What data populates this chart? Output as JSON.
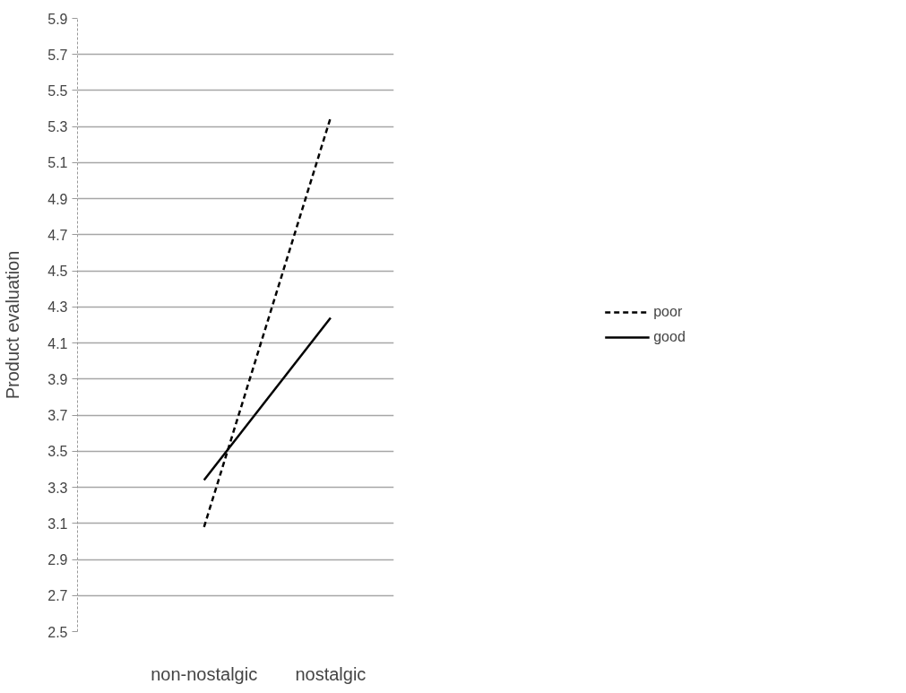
{
  "chart_data": {
    "type": "line",
    "ylabel": "Product evaluation",
    "categories": [
      "non-nostalgic",
      "nostalgic"
    ],
    "series": [
      {
        "name": "poor",
        "color": "#000000",
        "line_style": "dashed",
        "values": [
          3.08,
          5.35
        ]
      },
      {
        "name": "good",
        "color": "#000000",
        "line_style": "solid",
        "values": [
          3.34,
          4.24
        ]
      }
    ],
    "ylim": [
      2.5,
      5.9
    ],
    "yticks": [
      {
        "value": 2.5,
        "label": "2.5"
      },
      {
        "value": 2.7,
        "label": "2.7"
      },
      {
        "value": 2.9,
        "label": "2.9"
      },
      {
        "value": 3.1,
        "label": "3.1"
      },
      {
        "value": 3.3,
        "label": "3.3"
      },
      {
        "value": 3.5,
        "label": "3.5"
      },
      {
        "value": 3.7,
        "label": "3.7"
      },
      {
        "value": 3.9,
        "label": "3.9"
      },
      {
        "value": 4.1,
        "label": "4.1"
      },
      {
        "value": 4.3,
        "label": "4.3"
      },
      {
        "value": 4.5,
        "label": "4.5"
      },
      {
        "value": 4.7,
        "label": "4.7"
      },
      {
        "value": 4.9,
        "label": "4.9"
      },
      {
        "value": 5.1,
        "label": "5.1"
      },
      {
        "value": 5.3,
        "label": "5.3"
      },
      {
        "value": 5.5,
        "label": "5.5"
      },
      {
        "value": 5.7,
        "label": "5.7"
      },
      {
        "value": 5.9,
        "label": "5.9"
      }
    ],
    "grid": "y",
    "legend": "right",
    "marker": "none"
  }
}
